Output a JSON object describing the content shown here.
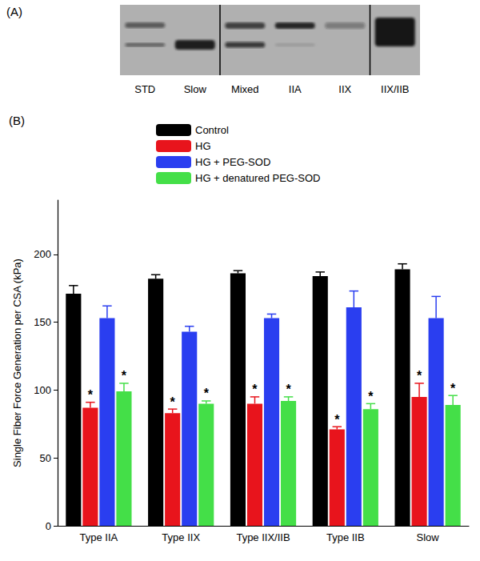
{
  "gel": {
    "label": "(A)",
    "lanes": [
      "STD",
      "Slow",
      "Mixed",
      "IIA",
      "IIX",
      "IIX/IIB"
    ]
  },
  "chart_data": {
    "type": "bar",
    "annotations": [
      "(B)"
    ],
    "ylabel": "Single Fiber Force Generation per CSA (kPa)",
    "categories": [
      "Type IIA",
      "Type IIX",
      "Type IIX/IIB",
      "Type IIB",
      "Slow"
    ],
    "series": [
      {
        "name": "Control",
        "color": "#000000",
        "values": [
          171,
          182,
          186,
          184,
          189
        ],
        "errors": [
          6,
          3,
          2,
          3,
          4
        ]
      },
      {
        "name": "HG",
        "color": "#e8141c",
        "values": [
          87,
          83,
          90,
          71,
          95
        ],
        "errors": [
          4,
          3,
          5,
          2,
          10
        ],
        "annotations": [
          "*",
          "*",
          "*",
          "*",
          "*"
        ]
      },
      {
        "name": "HG + PEG-SOD",
        "color": "#2a3ef0",
        "values": [
          153,
          143,
          153,
          161,
          153
        ],
        "errors": [
          9,
          4,
          3,
          12,
          16
        ]
      },
      {
        "name": "HG + denatured PEG-SOD",
        "color": "#44df48",
        "values": [
          99,
          90,
          92,
          86,
          89
        ],
        "errors": [
          6,
          2,
          3,
          4,
          7
        ],
        "annotations": [
          "*",
          "*",
          "*",
          "*",
          "*"
        ]
      }
    ],
    "ylim": [
      0,
      240
    ],
    "yticks": [
      0,
      50,
      100,
      150,
      200
    ],
    "grid": false,
    "legend": "top"
  }
}
